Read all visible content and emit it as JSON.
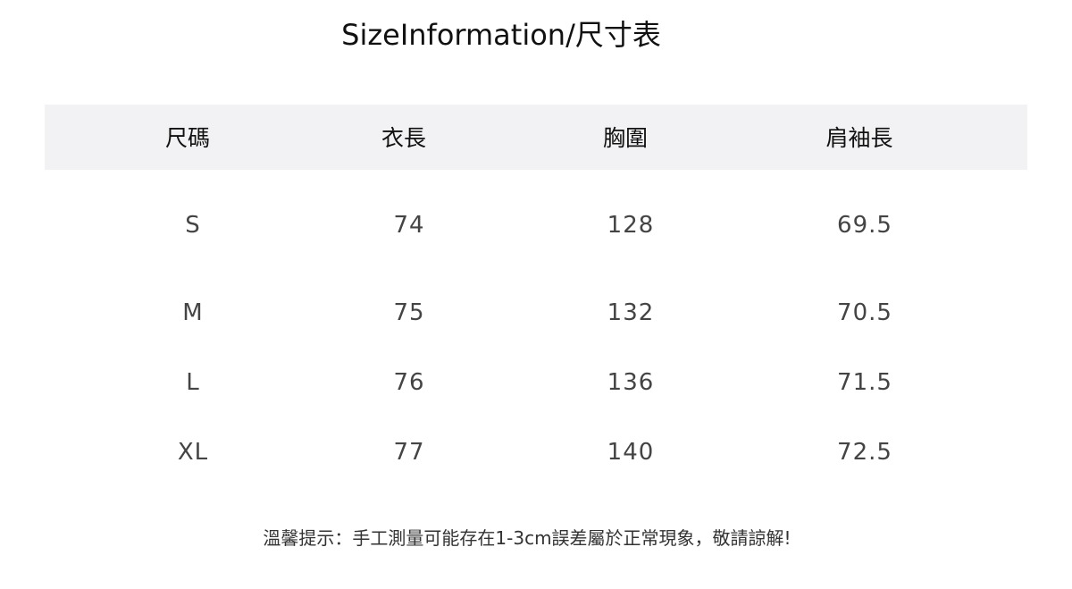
{
  "title": "SizeInformation/尺寸表",
  "table": {
    "headers": [
      "尺碼",
      "衣長",
      "胸圍",
      "肩袖長"
    ],
    "rows": [
      [
        "S",
        "74",
        "128",
        "69.5"
      ],
      [
        "M",
        "75",
        "132",
        "70.5"
      ],
      [
        "L",
        "76",
        "136",
        "71.5"
      ],
      [
        "XL",
        "77",
        "140",
        "72.5"
      ]
    ]
  },
  "note": "溫馨提示：手工測量可能存在1-3cm誤差屬於正常現象，敬請諒解!"
}
